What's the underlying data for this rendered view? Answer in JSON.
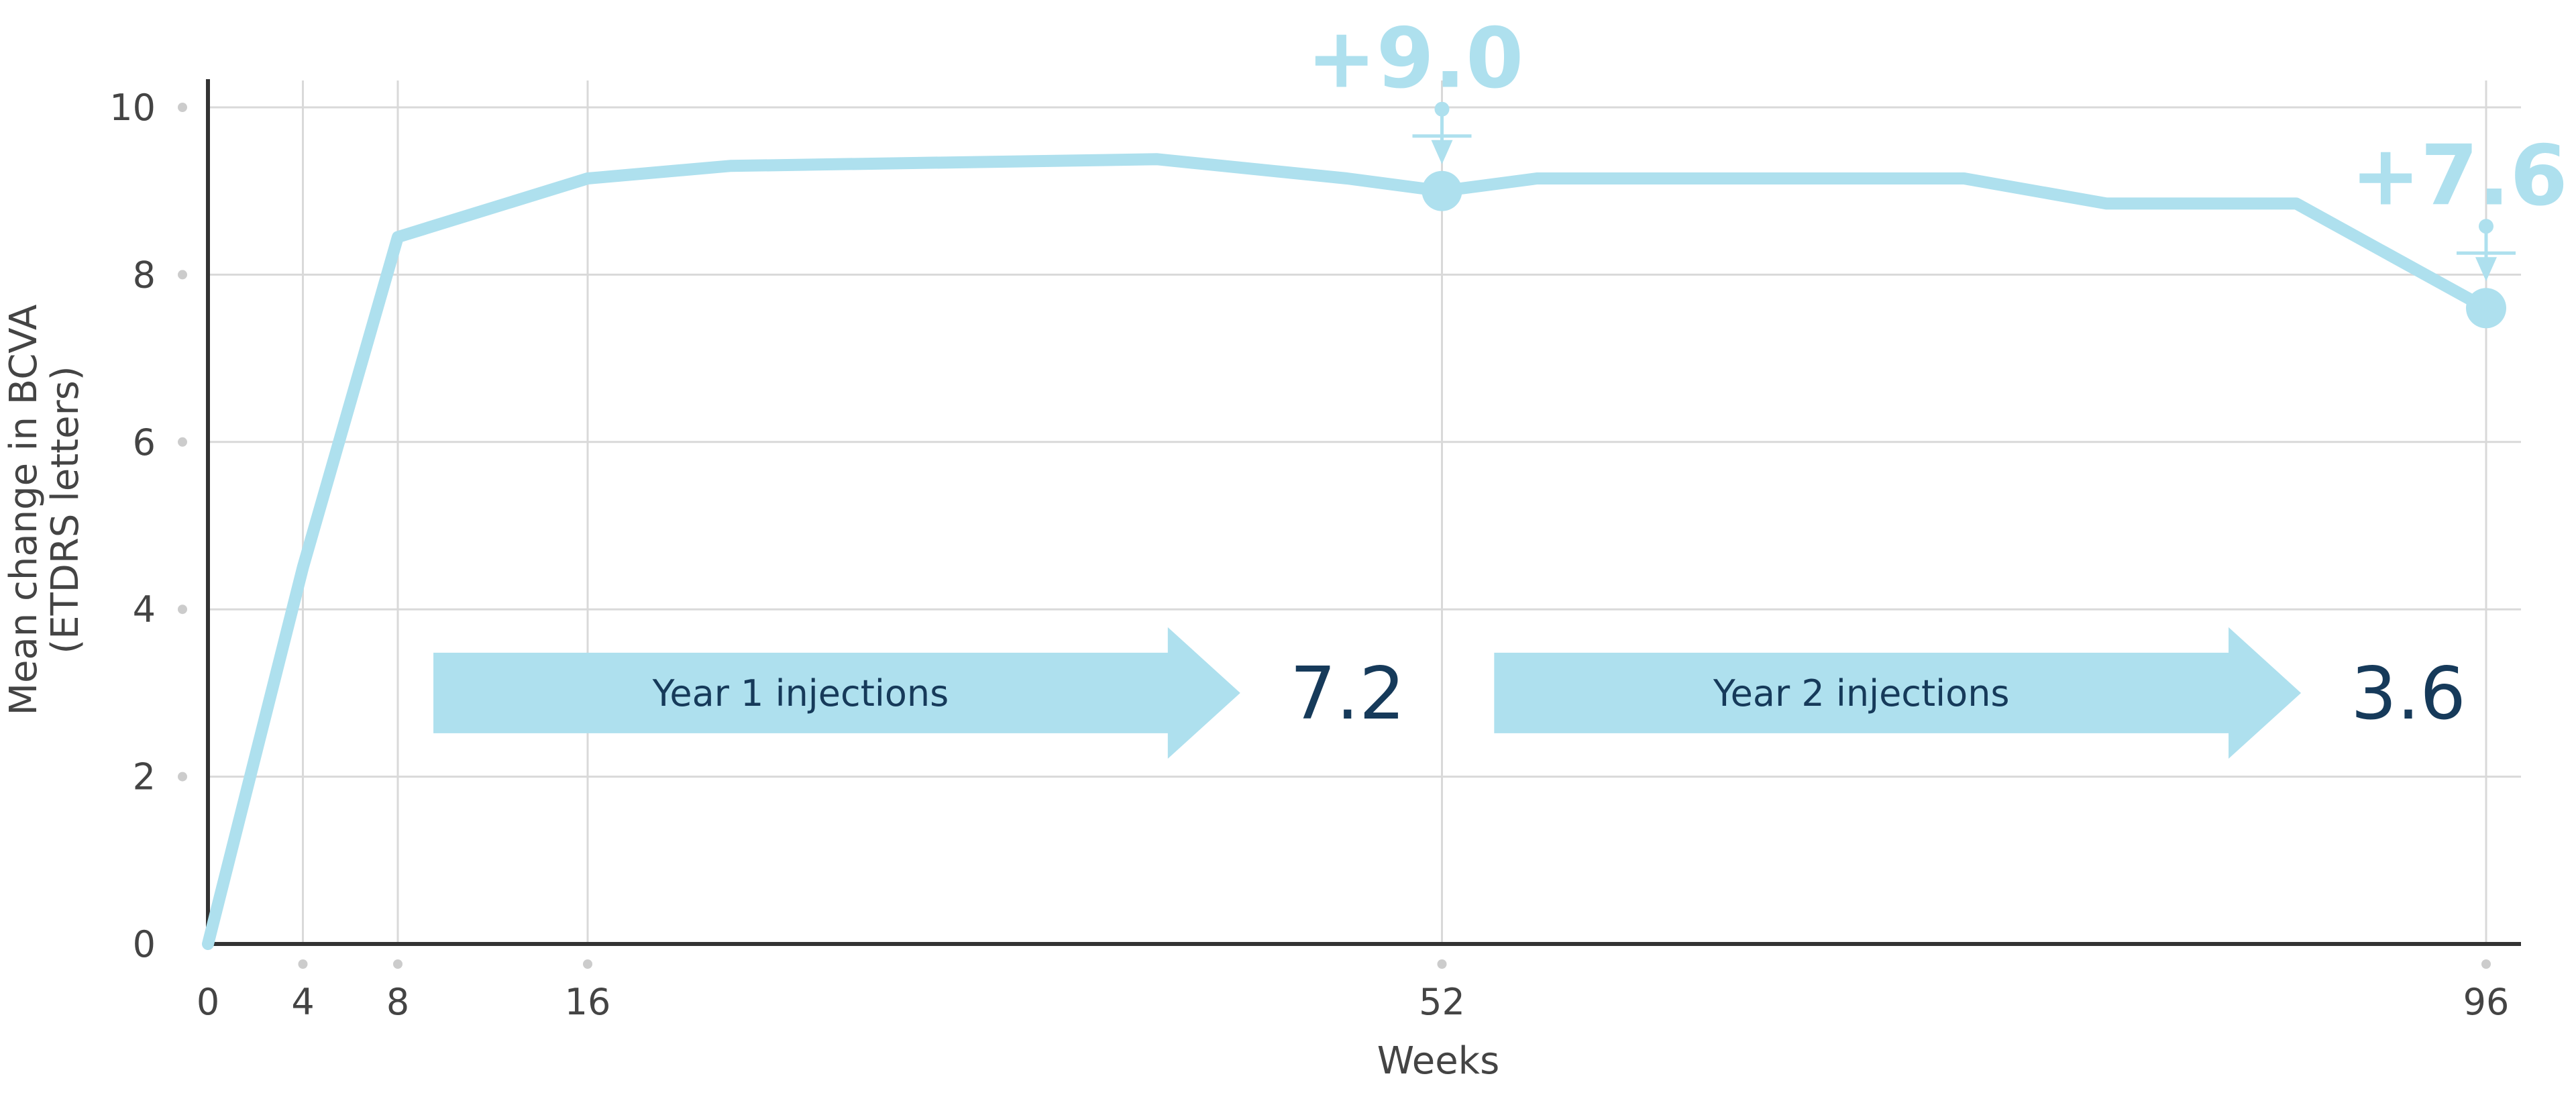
{
  "colors": {
    "series": "#aee0ee",
    "axis": "#333333",
    "grid": "#d9d9d9",
    "tick_dot": "#cccccc",
    "text": "#444444",
    "dark_number": "#163a5a"
  },
  "chart_data": {
    "type": "line",
    "title": "",
    "xlabel": "Weeks",
    "ylabel_line1": "Mean change in BCVA",
    "ylabel_line2": "(ETDRS letters)",
    "xlim": [
      0,
      96
    ],
    "ylim": [
      0,
      10
    ],
    "x_ticks": [
      0,
      4,
      8,
      16,
      52,
      96
    ],
    "x_tick_labels": [
      "0",
      "4",
      "8",
      "16",
      "52",
      "96"
    ],
    "y_ticks": [
      0,
      2,
      4,
      6,
      8,
      10
    ],
    "y_tick_labels": [
      "0",
      "2",
      "4",
      "6",
      "8",
      "10"
    ],
    "grid": true,
    "series": [
      {
        "points": [
          [
            0,
            0.0
          ],
          [
            4,
            4.5
          ],
          [
            8,
            8.45
          ],
          [
            16,
            9.15
          ],
          [
            22,
            9.3
          ],
          [
            40,
            9.38
          ],
          [
            48,
            9.15
          ],
          [
            52,
            9.0
          ],
          [
            56,
            9.15
          ],
          [
            74,
            9.15
          ],
          [
            80,
            8.85
          ],
          [
            88,
            8.85
          ],
          [
            96,
            7.6
          ]
        ]
      }
    ],
    "callouts": [
      {
        "x": 52,
        "y": 9.0,
        "label": "+9.0"
      },
      {
        "x": 96,
        "y": 7.6,
        "label": "+7.6"
      }
    ],
    "arrows": [
      {
        "label": "Year 1 injections",
        "count": "7.2",
        "x_start": 9.5,
        "x_end": 43.5,
        "y": 3.0
      },
      {
        "label": "Year 2 injections",
        "count": "3.6",
        "x_start": 54.2,
        "x_end": 88.2,
        "y": 3.0
      }
    ]
  }
}
